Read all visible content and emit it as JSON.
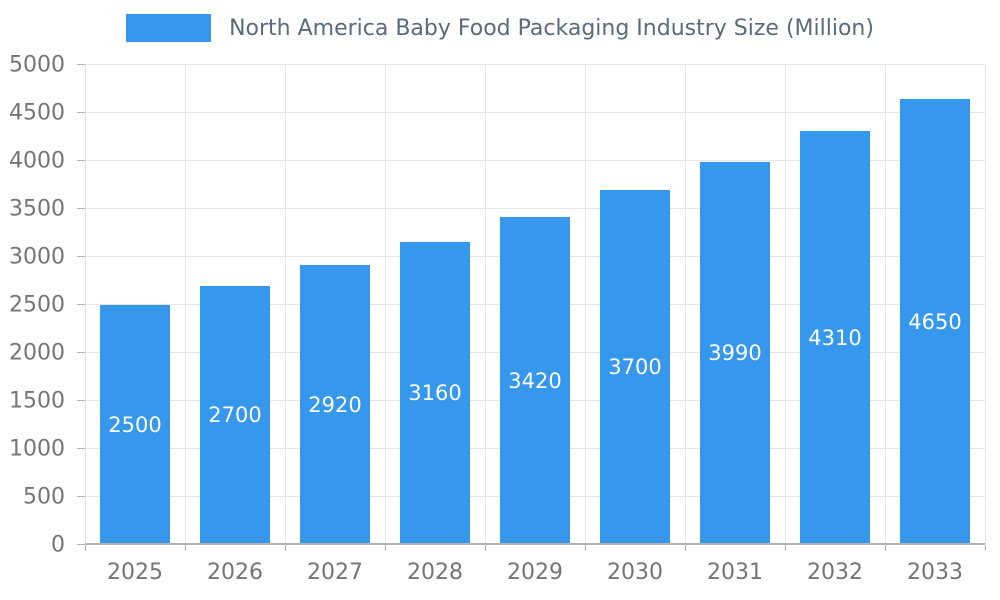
{
  "chart_data": {
    "type": "bar",
    "title": "North America Baby Food Packaging Industry Size (Million)",
    "categories": [
      "2025",
      "2026",
      "2027",
      "2028",
      "2029",
      "2030",
      "2031",
      "2032",
      "2033"
    ],
    "values": [
      2500,
      2700,
      2920,
      3160,
      3420,
      3700,
      3990,
      4310,
      4650
    ],
    "xlabel": "",
    "ylabel": "",
    "ylim": [
      0,
      5000
    ],
    "ytick_step": 500,
    "grid": true,
    "legend_position": "top",
    "value_labels": "inside-center",
    "colors": {
      "bar": "#3598ec",
      "value_label": "#ffffff",
      "title": "#5a6b7c",
      "axis_text": "#757575",
      "gridline": "#e6e6e6",
      "axis_line": "#b3b3b3"
    }
  }
}
